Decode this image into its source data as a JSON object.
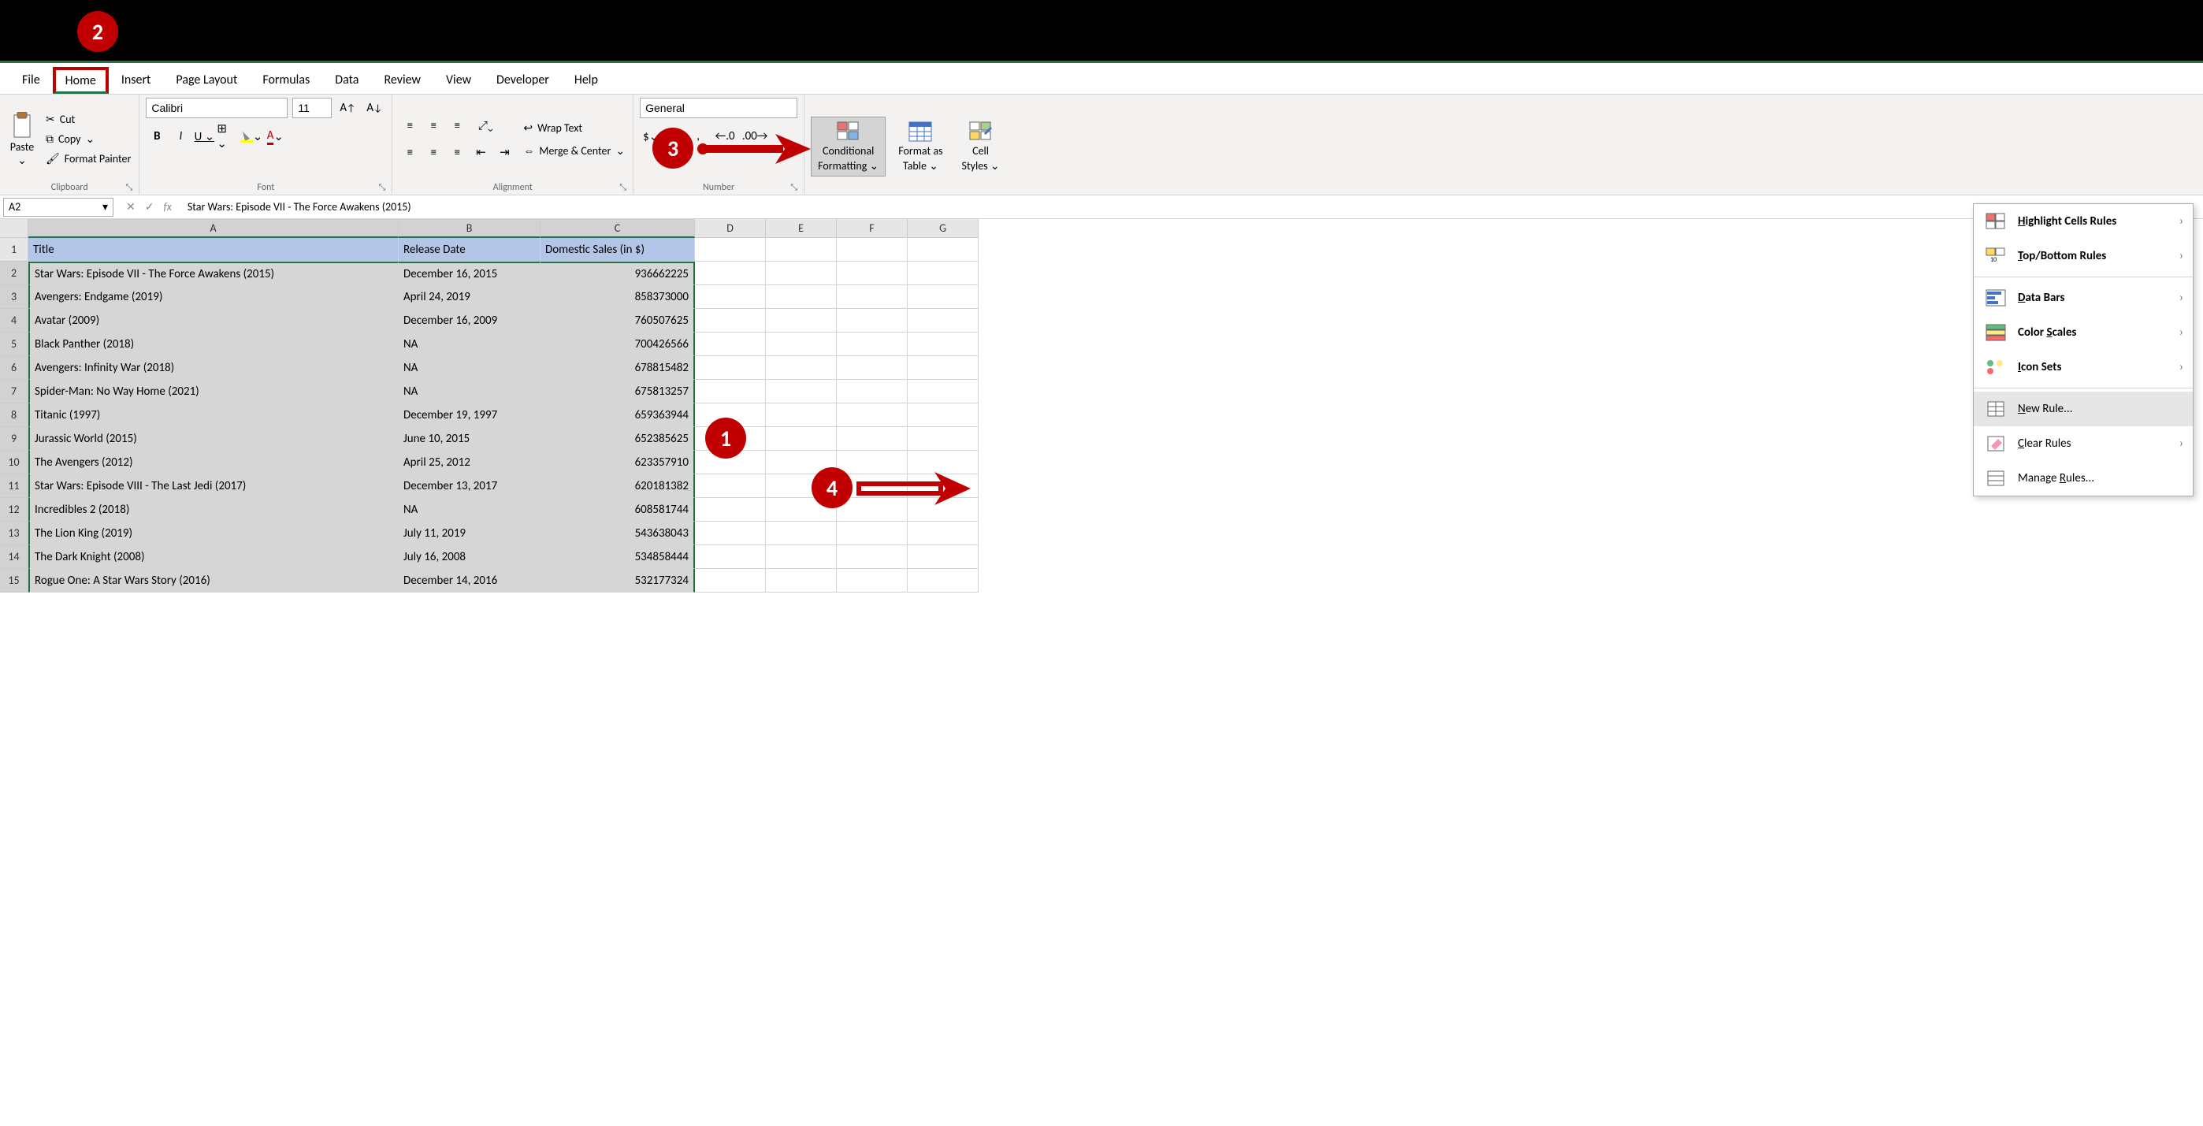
{
  "colors": {
    "accent": "#c00000",
    "excel_green": "#217346",
    "header_fill": "#b4c6e7",
    "selection_fill": "#d6d6d6"
  },
  "callouts": {
    "c1": "1",
    "c2": "2",
    "c3": "3",
    "c4": "4"
  },
  "tabs": {
    "file": "File",
    "home": "Home",
    "insert": "Insert",
    "page_layout": "Page Layout",
    "formulas": "Formulas",
    "data": "Data",
    "review": "Review",
    "view": "View",
    "developer": "Developer",
    "help": "Help"
  },
  "ribbon": {
    "clipboard": {
      "paste": "Paste",
      "cut": "Cut",
      "copy": "Copy",
      "format_painter": "Format Painter",
      "label": "Clipboard"
    },
    "font": {
      "name": "Calibri",
      "size": "11",
      "label": "Font"
    },
    "alignment": {
      "wrap": "Wrap Text",
      "merge": "Merge & Center",
      "label": "Alignment"
    },
    "number": {
      "format": "General",
      "label": "Number"
    },
    "styles": {
      "conditional": "Conditional",
      "formatting": "Formatting",
      "format_as": "Format as",
      "table": "Table",
      "cell": "Cell",
      "styles_lbl": "Styles"
    }
  },
  "formula_bar": {
    "name_box": "A2",
    "formula": "Star Wars: Episode VII - The Force Awakens (2015)"
  },
  "columns": [
    "A",
    "B",
    "C",
    "D",
    "E",
    "F",
    "G"
  ],
  "headers": {
    "title": "Title",
    "release": "Release Date",
    "sales": "Domestic Sales (in $)"
  },
  "rows": [
    {
      "n": 1,
      "title": "Title",
      "release": "Release Date",
      "sales": "Domestic Sales (in $)",
      "is_hdr": true
    },
    {
      "n": 2,
      "title": "Star Wars: Episode VII - The Force Awakens (2015)",
      "release": "December 16, 2015",
      "sales": "936662225"
    },
    {
      "n": 3,
      "title": "Avengers: Endgame (2019)",
      "release": "April 24, 2019",
      "sales": "858373000"
    },
    {
      "n": 4,
      "title": "Avatar (2009)",
      "release": "December 16, 2009",
      "sales": "760507625"
    },
    {
      "n": 5,
      "title": "Black Panther (2018)",
      "release": "NA",
      "sales": "700426566"
    },
    {
      "n": 6,
      "title": "Avengers: Infinity War (2018)",
      "release": "NA",
      "sales": "678815482"
    },
    {
      "n": 7,
      "title": "Spider-Man: No Way Home (2021)",
      "release": "NA",
      "sales": "675813257"
    },
    {
      "n": 8,
      "title": "Titanic (1997)",
      "release": "December 19, 1997",
      "sales": "659363944"
    },
    {
      "n": 9,
      "title": "Jurassic World (2015)",
      "release": "June 10, 2015",
      "sales": "652385625"
    },
    {
      "n": 10,
      "title": "The Avengers (2012)",
      "release": "April 25, 2012",
      "sales": "623357910"
    },
    {
      "n": 11,
      "title": "Star Wars: Episode VIII - The Last Jedi (2017)",
      "release": "December 13, 2017",
      "sales": "620181382"
    },
    {
      "n": 12,
      "title": "Incredibles 2 (2018)",
      "release": "NA",
      "sales": "608581744"
    },
    {
      "n": 13,
      "title": "The Lion King (2019)",
      "release": "July 11, 2019",
      "sales": "543638043"
    },
    {
      "n": 14,
      "title": "The Dark Knight (2008)",
      "release": "July 16, 2008",
      "sales": "534858444"
    },
    {
      "n": 15,
      "title": "Rogue One: A Star Wars Story (2016)",
      "release": "December 14, 2016",
      "sales": "532177324"
    }
  ],
  "dropdown": {
    "highlight": "Highlight Cells Rules",
    "topbottom": "Top/Bottom Rules",
    "databars": "Data Bars",
    "colorscales": "Color Scales",
    "iconsets": "Icon Sets",
    "newrule": "New Rule...",
    "clearrules": "Clear Rules",
    "managerules": "Manage Rules...",
    "accel": {
      "highlight": "H",
      "topbottom": "T",
      "databars": "D",
      "colorscales": "S",
      "iconsets": "I",
      "newrule": "N",
      "clearrules": "C",
      "managerules": "R"
    }
  }
}
